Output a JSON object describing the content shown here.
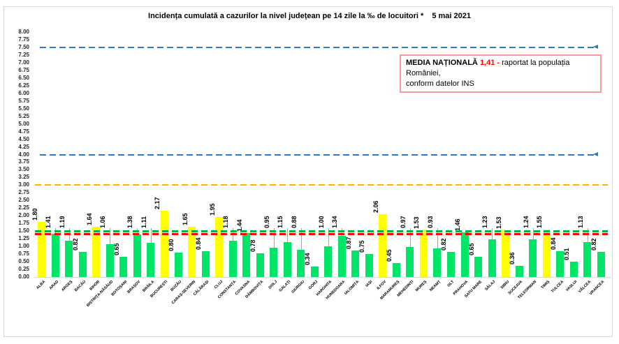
{
  "title": {
    "text": "Incidența cumulată a cazurilor la nivel județean pe 14 zile la ‰ de locuitori *",
    "date": "5 mai 2021"
  },
  "annotation": {
    "bold_label": "MEDIA NAȚIONALĂ",
    "value": "1,41 -",
    "value_color": "#ff0000",
    "text_line1": "raportat la populația României,",
    "text_line2": "conform datelor INS",
    "border_color": "#f49a9a"
  },
  "chart_data": {
    "type": "bar",
    "title": "Incidența cumulată a cazurilor la nivel județean pe 14 zile la ‰ de locuitori *   5 mai 2021",
    "xlabel": "",
    "ylabel": "",
    "ylim": [
      0,
      8
    ],
    "ytick_step": 0.25,
    "grid": false,
    "legend": null,
    "ytick_labels": [
      "8.00",
      "7.75",
      "7.50",
      "7.25",
      "7.00",
      "6.75",
      "6.50",
      "6.25",
      "6.00",
      "5.75",
      "5.50",
      "5.25",
      "5.00",
      "4.75",
      "4.50",
      "4.25",
      "4.00",
      "3.75",
      "3.50",
      "3.25",
      "3.00",
      "2.75",
      "2.50",
      "2.25",
      "2.00",
      "1.75",
      "1.50",
      "1.25",
      "1.00",
      "0.75",
      "0.50",
      "0.25",
      "0.00"
    ],
    "categories": [
      "ALBA",
      "ARAD",
      "ARGEȘ",
      "BACĂU",
      "BIHOR",
      "BISTRIȚA-NĂSĂUD",
      "BOTOȘANI",
      "BRAȘOV",
      "BRĂILA",
      "BUCUREȘTI",
      "BUZĂU",
      "CARAȘ-SEVERIN",
      "CĂLĂRAȘI",
      "CLUJ",
      "CONSTANȚA",
      "COVASNA",
      "DÂMBOVIȚA",
      "DOLJ",
      "GALAȚI",
      "GIURGIU",
      "GORJ",
      "HARGHITA",
      "HUNEDOARA",
      "IALOMIȚA",
      "IAȘI",
      "ILFOV",
      "MARAMUREȘ",
      "MEHEDINȚI",
      "MUREȘ",
      "NEAMȚ",
      "OLT",
      "PRAHOVA",
      "SATU MARE",
      "SĂLAJ",
      "SIBIU",
      "SUCEAVA",
      "TELEORMAN",
      "TIMIȘ",
      "TULCEA",
      "VASLUI",
      "VÂLCEA",
      "VRANCEA"
    ],
    "values": [
      1.8,
      1.41,
      1.19,
      0.82,
      1.64,
      1.06,
      0.65,
      1.38,
      1.11,
      2.17,
      0.8,
      1.65,
      0.84,
      1.95,
      1.18,
      1.44,
      0.78,
      0.95,
      1.15,
      0.88,
      0.34,
      1.0,
      1.34,
      0.87,
      0.75,
      2.06,
      0.45,
      0.97,
      1.53,
      0.93,
      0.82,
      1.46,
      0.65,
      1.23,
      1.53,
      0.36,
      1.24,
      1.55,
      0.84,
      0.51,
      1.13,
      0.82
    ],
    "bar_colors": [
      "yellow",
      "green",
      "green",
      "green",
      "yellow",
      "green",
      "green",
      "green",
      "green",
      "yellow",
      "green",
      "yellow",
      "green",
      "yellow",
      "green",
      "green",
      "green",
      "green",
      "green",
      "green",
      "green",
      "green",
      "green",
      "green",
      "green",
      "yellow",
      "green",
      "green",
      "yellow",
      "green",
      "green",
      "green",
      "green",
      "green",
      "yellow",
      "green",
      "green",
      "yellow",
      "green",
      "green",
      "green",
      "green"
    ],
    "raised_value_labels": [
      1,
      2,
      5,
      7,
      8,
      14,
      17,
      18,
      19,
      21,
      22,
      27,
      29,
      33,
      36,
      40
    ],
    "palette": {
      "yellow": "#ffff00",
      "green": "#00e468",
      "leader": "#a6a6a6"
    },
    "reference_lines": [
      {
        "value": 7.5,
        "color": "#2e78c8",
        "style": "dashed",
        "weight": 2,
        "arrow": true
      },
      {
        "value": 4.0,
        "color": "#2e78c8",
        "style": "dashed",
        "weight": 2,
        "arrow": true
      },
      {
        "value": 3.0,
        "color": "#ffb400",
        "style": "dashed",
        "weight": 2,
        "arrow": false
      },
      {
        "value": 1.5,
        "color": "#00b050",
        "style": "dashed",
        "weight": 3,
        "arrow": false
      },
      {
        "value": 1.41,
        "color": "#ff0000",
        "style": "dashed",
        "weight": 3,
        "arrow": false,
        "label": "MEDIA NAȚIONALĂ"
      }
    ]
  }
}
